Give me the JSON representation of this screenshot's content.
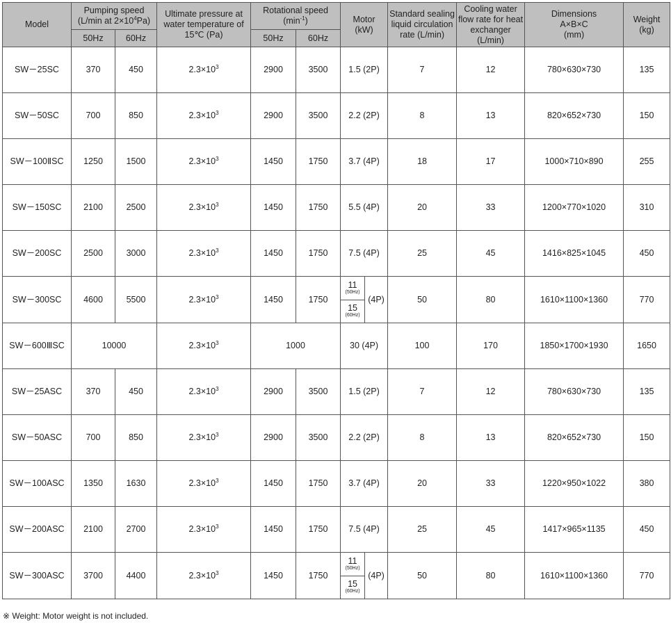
{
  "headers": {
    "model": "Model",
    "pumping_speed": "Pumping speed",
    "pumping_speed_unit": "(L/min at 2×10",
    "pumping_speed_exp": "4",
    "pumping_speed_unit_end": "Pa)",
    "ultimate_pressure": "Ultimate pressure at water temperature of 15℃ (Pa)",
    "rotational_speed": "Rotational speed",
    "rotational_speed_unit": "(min",
    "rotational_speed_exp": "-1",
    "rotational_speed_unit_end": ")",
    "motor": "Motor",
    "motor_unit": "(kW)",
    "sealing": "Standard sealing liquid circulation rate (L/min)",
    "cooling": "Cooling water flow rate for heat exchanger (L/min)",
    "dimensions": "Dimensions",
    "dimensions_abc": "A×B×C",
    "dimensions_unit": "(mm)",
    "weight": "Weight",
    "weight_unit": "(kg)",
    "hz50": "50Hz",
    "hz60": "60Hz"
  },
  "pressure_base": "2.3×10",
  "pressure_exp": "3",
  "rows": [
    {
      "model": "SW－25SC",
      "ps50": "370",
      "ps60": "450",
      "rs50": "2900",
      "rs60": "3500",
      "motor": "1.5 (2P)",
      "sealing": "7",
      "cooling": "12",
      "dims": "780×630×730",
      "weight": "135"
    },
    {
      "model": "SW－50SC",
      "ps50": "700",
      "ps60": "850",
      "rs50": "2900",
      "rs60": "3500",
      "motor": "2.2 (2P)",
      "sealing": "8",
      "cooling": "13",
      "dims": "820×652×730",
      "weight": "150"
    },
    {
      "model": "SW－100ⅡSC",
      "ps50": "1250",
      "ps60": "1500",
      "rs50": "1450",
      "rs60": "1750",
      "motor": "3.7 (4P)",
      "sealing": "18",
      "cooling": "17",
      "dims": "1000×710×890",
      "weight": "255"
    },
    {
      "model": "SW－150SC",
      "ps50": "2100",
      "ps60": "2500",
      "rs50": "1450",
      "rs60": "1750",
      "motor": "5.5 (4P)",
      "sealing": "20",
      "cooling": "33",
      "dims": "1200×770×1020",
      "weight": "310"
    },
    {
      "model": "SW－200SC",
      "ps50": "2500",
      "ps60": "3000",
      "rs50": "1450",
      "rs60": "1750",
      "motor": "7.5 (4P)",
      "sealing": "25",
      "cooling": "45",
      "dims": "1416×825×1045",
      "weight": "450"
    },
    {
      "model": "SW－300SC",
      "ps50": "4600",
      "ps60": "5500",
      "rs50": "1450",
      "rs60": "1750",
      "motor_kw_50": "11",
      "motor_hz_50": "(50Hz)",
      "motor_kw_60": "15",
      "motor_hz_60": "(60Hz)",
      "motor_pole": "(4P)",
      "sealing": "50",
      "cooling": "80",
      "dims": "1610×1100×1360",
      "weight": "770"
    },
    {
      "model": "SW－600ⅢSC",
      "ps_merged": "10000",
      "rs_merged": "1000",
      "motor": "30 (4P)",
      "sealing": "100",
      "cooling": "170",
      "dims": "1850×1700×1930",
      "weight": "1650"
    },
    {
      "model": "SW－25ASC",
      "ps50": "370",
      "ps60": "450",
      "rs50": "2900",
      "rs60": "3500",
      "motor": "1.5 (2P)",
      "sealing": "7",
      "cooling": "12",
      "dims": "780×630×730",
      "weight": "135"
    },
    {
      "model": "SW－50ASC",
      "ps50": "700",
      "ps60": "850",
      "rs50": "2900",
      "rs60": "3500",
      "motor": "2.2 (2P)",
      "sealing": "8",
      "cooling": "13",
      "dims": "820×652×730",
      "weight": "150"
    },
    {
      "model": "SW－100ASC",
      "ps50": "1350",
      "ps60": "1630",
      "rs50": "1450",
      "rs60": "1750",
      "motor": "3.7 (4P)",
      "sealing": "20",
      "cooling": "33",
      "dims": "1220×950×1022",
      "weight": "380"
    },
    {
      "model": "SW－200ASC",
      "ps50": "2100",
      "ps60": "2700",
      "rs50": "1450",
      "rs60": "1750",
      "motor": "7.5 (4P)",
      "sealing": "25",
      "cooling": "45",
      "dims": "1417×965×1135",
      "weight": "450"
    },
    {
      "model": "SW－300ASC",
      "ps50": "3700",
      "ps60": "4400",
      "rs50": "1450",
      "rs60": "1750",
      "motor_kw_50": "11",
      "motor_hz_50": "(50Hz)",
      "motor_kw_60": "15",
      "motor_hz_60": "(60Hz)",
      "motor_pole": "(4P)",
      "sealing": "50",
      "cooling": "80",
      "dims": "1610×1100×1360",
      "weight": "770"
    }
  ],
  "note": "※ Weight: Motor weight is not included."
}
